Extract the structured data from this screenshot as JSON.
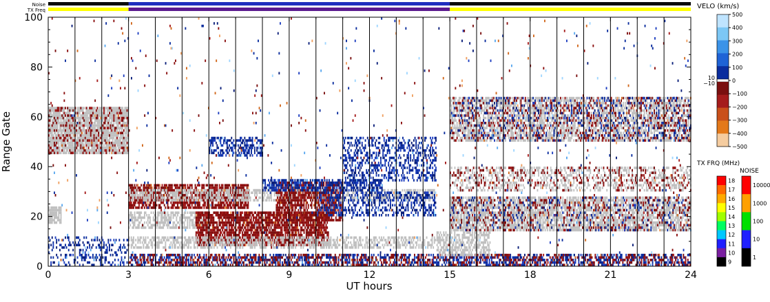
{
  "chart_data": {
    "type": "heatmap",
    "xlabel": "UT hours",
    "ylabel": "Range Gate",
    "xlim": [
      0,
      24
    ],
    "ylim": [
      0,
      100
    ],
    "x_ticks": [
      "0",
      "3",
      "6",
      "9",
      "12",
      "15",
      "18",
      "21",
      "24"
    ],
    "y_ticks": [
      "0",
      "20",
      "40",
      "60",
      "80",
      "100"
    ],
    "noise_label": "Noise",
    "txfreq_label": "TX Freq",
    "noise_strip_color": "#0a0a0a",
    "noise_strip_mid_color": "#1f2fbf",
    "txfreq_segments": [
      {
        "start": 0,
        "end": 3,
        "color": "#ffff00"
      },
      {
        "start": 3,
        "end": 15,
        "color": "#5b1a8f"
      },
      {
        "start": 15,
        "end": 24,
        "color": "#ffff00"
      }
    ],
    "velocity_colorbar": {
      "title": "VELO (km/s)",
      "ticks": [
        "500",
        "400",
        "300",
        "200",
        "100",
        "0",
        "−100",
        "−200",
        "−300",
        "−400",
        "−500"
      ],
      "side_ticks": [
        "10",
        "−10"
      ],
      "colors": [
        "#bfe4ff",
        "#7cc7f5",
        "#3b93e8",
        "#1f63d6",
        "#0b2d9e",
        "#ffffff",
        "#7a0f0f",
        "#a51c1c",
        "#c9501a",
        "#e3791a",
        "#f5cc9f"
      ]
    },
    "txfreq_colorbar": {
      "title": "TX FRQ (MHz)",
      "ticks": [
        "18",
        "17",
        "16",
        "15",
        "14",
        "13",
        "12",
        "11",
        "10",
        "9"
      ],
      "colors": [
        "#ff0000",
        "#ff6a00",
        "#ffaa00",
        "#ffff00",
        "#a0ff00",
        "#00ff60",
        "#00c8ff",
        "#2020ff",
        "#7a1fa0",
        "#000000"
      ]
    },
    "noise_colorbar": {
      "title": "NOISE",
      "ticks": [
        "10000",
        "1000",
        "100",
        "10",
        "1"
      ],
      "colors": [
        "#ff0000",
        "#ffa000",
        "#00e000",
        "#2020ff",
        "#000000"
      ]
    },
    "regions": [
      {
        "t0": 0.0,
        "t1": 3.0,
        "g0": 45,
        "g1": 64,
        "kind": "gs",
        "density": 0.85
      },
      {
        "t0": 0.0,
        "t1": 3.0,
        "g0": 45,
        "g1": 64,
        "kind": "neg",
        "density": 0.18
      },
      {
        "t0": 0.0,
        "t1": 0.5,
        "g0": 17,
        "g1": 24,
        "kind": "gs",
        "density": 0.8
      },
      {
        "t0": 0.0,
        "t1": 3.0,
        "g0": 0,
        "g1": 12,
        "kind": "pos",
        "density": 0.25
      },
      {
        "t0": 3.0,
        "t1": 7.5,
        "g0": 23,
        "g1": 33,
        "kind": "neg",
        "density": 0.75
      },
      {
        "t0": 3.0,
        "t1": 14.5,
        "g0": 26,
        "g1": 31,
        "kind": "gs",
        "density": 0.55
      },
      {
        "t0": 3.0,
        "t1": 6.0,
        "g0": 15,
        "g1": 22,
        "kind": "gs",
        "density": 0.6
      },
      {
        "t0": 5.5,
        "t1": 10.5,
        "g0": 8,
        "g1": 22,
        "kind": "neg",
        "density": 0.75
      },
      {
        "t0": 8.5,
        "t1": 11.0,
        "g0": 18,
        "g1": 34,
        "kind": "neg",
        "density": 0.65
      },
      {
        "t0": 8.0,
        "t1": 12.5,
        "g0": 30,
        "g1": 35,
        "kind": "pos",
        "density": 0.6
      },
      {
        "t0": 10.0,
        "t1": 14.5,
        "g0": 20,
        "g1": 30,
        "kind": "pos",
        "density": 0.4
      },
      {
        "t0": 11.0,
        "t1": 14.5,
        "g0": 34,
        "g1": 52,
        "kind": "pos",
        "density": 0.4
      },
      {
        "t0": 6.0,
        "t1": 8.0,
        "g0": 44,
        "g1": 52,
        "kind": "pos",
        "density": 0.5
      },
      {
        "t0": 3.0,
        "t1": 14.5,
        "g0": 7,
        "g1": 12,
        "kind": "gs",
        "density": 0.5
      },
      {
        "t0": 3.0,
        "t1": 24.0,
        "g0": 0,
        "g1": 5,
        "kind": "pos",
        "density": 0.45
      },
      {
        "t0": 3.0,
        "t1": 24.0,
        "g0": 0,
        "g1": 5,
        "kind": "neg",
        "density": 0.3
      },
      {
        "t0": 15.0,
        "t1": 24.0,
        "g0": 14,
        "g1": 28,
        "kind": "gs",
        "density": 0.7
      },
      {
        "t0": 15.0,
        "t1": 24.0,
        "g0": 14,
        "g1": 28,
        "kind": "neg",
        "density": 0.15
      },
      {
        "t0": 15.0,
        "t1": 24.0,
        "g0": 14,
        "g1": 28,
        "kind": "pos",
        "density": 0.08
      },
      {
        "t0": 15.0,
        "t1": 24.0,
        "g0": 50,
        "g1": 68,
        "kind": "gs",
        "density": 0.6
      },
      {
        "t0": 15.0,
        "t1": 24.0,
        "g0": 50,
        "g1": 68,
        "kind": "neg",
        "density": 0.15
      },
      {
        "t0": 15.0,
        "t1": 24.0,
        "g0": 50,
        "g1": 68,
        "kind": "pos",
        "density": 0.12
      },
      {
        "t0": 15.0,
        "t1": 24.0,
        "g0": 30,
        "g1": 40,
        "kind": "gs",
        "density": 0.35
      },
      {
        "t0": 15.0,
        "t1": 24.0,
        "g0": 30,
        "g1": 40,
        "kind": "neg",
        "density": 0.12
      },
      {
        "t0": 14.5,
        "t1": 16.5,
        "g0": 4,
        "g1": 14,
        "kind": "gs",
        "density": 0.55
      },
      {
        "t0": 0.0,
        "t1": 24.0,
        "g0": 0,
        "g1": 100,
        "kind": "sparse",
        "density": 0.012
      }
    ]
  }
}
